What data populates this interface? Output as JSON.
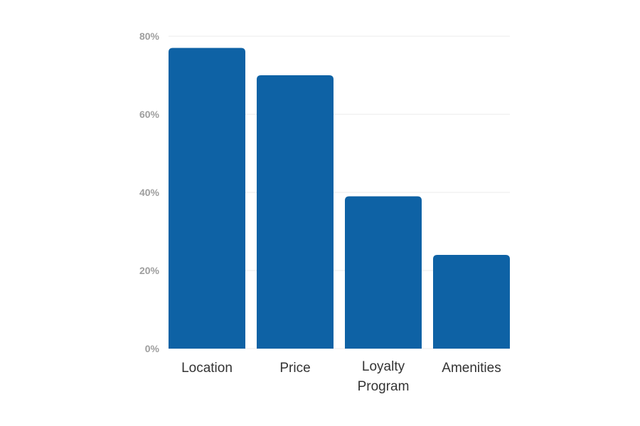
{
  "chart_data": {
    "type": "bar",
    "categories": [
      "Location",
      "Price",
      "Loyalty Program",
      "Amenities"
    ],
    "category_lines": [
      [
        "Location"
      ],
      [
        "Price"
      ],
      [
        "Loyalty",
        "Program"
      ],
      [
        "Amenities"
      ]
    ],
    "values": [
      77,
      70,
      39,
      24
    ],
    "unit": "%",
    "title": "",
    "xlabel": "",
    "ylabel": "",
    "ylim": [
      0,
      80
    ],
    "yticks": [
      0,
      20,
      40,
      60,
      80
    ],
    "ytick_labels": [
      "0%",
      "20%",
      "40%",
      "60%",
      "80%"
    ],
    "grid": true,
    "colors": {
      "bar": "#0e62a5",
      "grid": "#ebebeb",
      "tick": "#9e9e9e",
      "label": "#333333"
    }
  }
}
